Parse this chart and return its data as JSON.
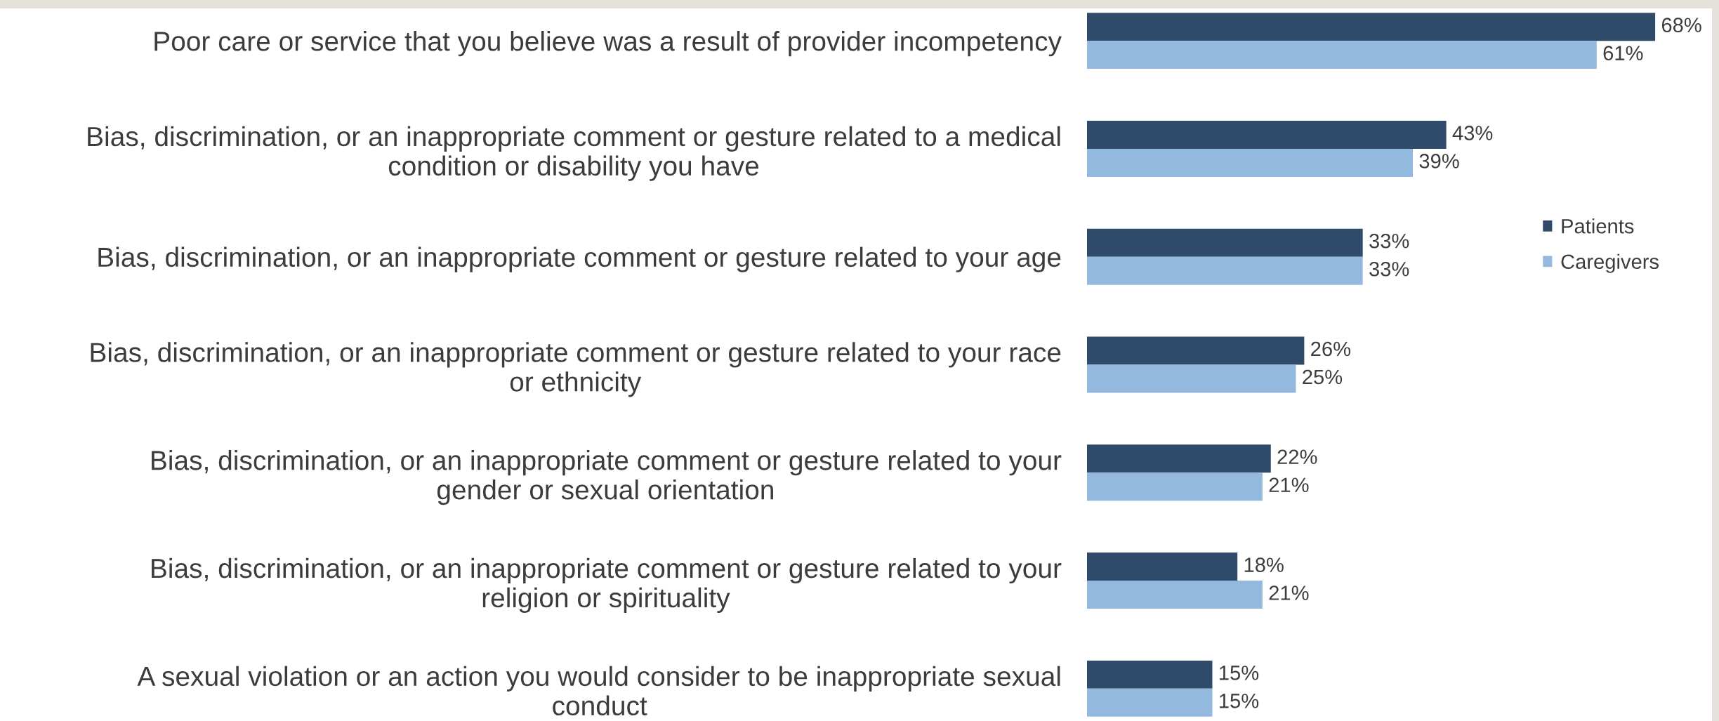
{
  "chart_data": {
    "type": "bar",
    "orientation": "horizontal",
    "categories": [
      "Poor care or service that you believe was a result of provider incompetency",
      "Bias, discrimination, or an inappropriate comment or gesture related to a medical\ncondition or disability you have",
      "Bias, discrimination, or an inappropriate comment or gesture related to your age",
      "Bias, discrimination, or an inappropriate comment or gesture related to your race\nor ethnicity",
      "Bias, discrimination, or an inappropriate comment or gesture related to your\ngender or sexual orientation",
      "Bias, discrimination, or an inappropriate comment or gesture related to your\nreligion or spirituality",
      "A sexual violation or an action you would consider to be inappropriate sexual\nconduct"
    ],
    "series": [
      {
        "name": "Patients",
        "color": "#2f4b69",
        "values": [
          68,
          43,
          33,
          26,
          22,
          18,
          15
        ],
        "value_labels": [
          "68%",
          "43%",
          "33%",
          "26%",
          "22%",
          "18%",
          "15%"
        ]
      },
      {
        "name": "Caregivers",
        "color": "#93b9de",
        "values": [
          61,
          39,
          33,
          25,
          21,
          21,
          15
        ],
        "value_labels": [
          "61%",
          "39%",
          "33%",
          "25%",
          "21%",
          "21%",
          "15%"
        ]
      }
    ],
    "legend": "right",
    "tick_labels": "y"
  }
}
